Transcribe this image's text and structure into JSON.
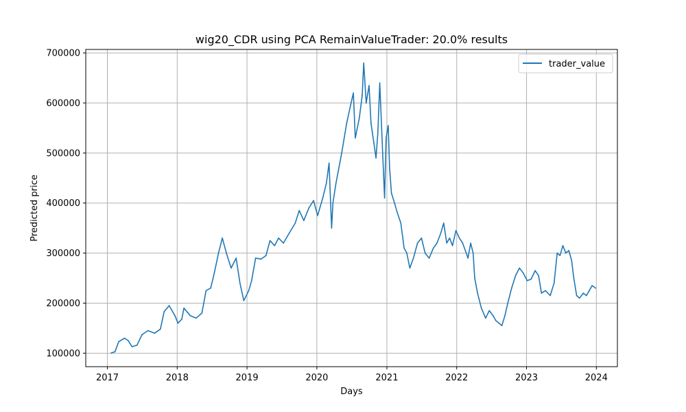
{
  "chart_data": {
    "type": "line",
    "title": "wig20_CDR using PCA RemainValueTrader: 20.0% results",
    "xlabel": "Days",
    "ylabel": "Predicted price",
    "xlim": [
      "2016-09-10",
      "2024-04-20"
    ],
    "ylim": [
      73000,
      707000
    ],
    "x_ticks": [
      {
        "label": "2017",
        "date": "2017-01-01"
      },
      {
        "label": "2018",
        "date": "2018-01-01"
      },
      {
        "label": "2019",
        "date": "2019-01-01"
      },
      {
        "label": "2020",
        "date": "2020-01-01"
      },
      {
        "label": "2021",
        "date": "2021-01-01"
      },
      {
        "label": "2022",
        "date": "2022-01-01"
      },
      {
        "label": "2023",
        "date": "2023-01-01"
      },
      {
        "label": "2024",
        "date": "2024-01-01"
      }
    ],
    "y_ticks": [
      {
        "label": "100000",
        "value": 100000
      },
      {
        "label": "200000",
        "value": 200000
      },
      {
        "label": "300000",
        "value": 300000
      },
      {
        "label": "400000",
        "value": 400000
      },
      {
        "label": "500000",
        "value": 500000
      },
      {
        "label": "600000",
        "value": 600000
      },
      {
        "label": "700000",
        "value": 700000
      }
    ],
    "grid": true,
    "legend_position": "top-right",
    "series": [
      {
        "name": "trader_value",
        "color": "#1f77b4",
        "points": [
          [
            "2017-01-20",
            100000
          ],
          [
            "2017-02-10",
            103000
          ],
          [
            "2017-03-01",
            123000
          ],
          [
            "2017-04-01",
            130000
          ],
          [
            "2017-04-20",
            125000
          ],
          [
            "2017-05-10",
            113000
          ],
          [
            "2017-06-05",
            116000
          ],
          [
            "2017-07-01",
            137000
          ],
          [
            "2017-08-01",
            145000
          ],
          [
            "2017-09-05",
            140000
          ],
          [
            "2017-10-05",
            148000
          ],
          [
            "2017-10-25",
            183000
          ],
          [
            "2017-11-20",
            195000
          ],
          [
            "2017-12-05",
            185000
          ],
          [
            "2017-12-20",
            175000
          ],
          [
            "2018-01-05",
            160000
          ],
          [
            "2018-01-25",
            168000
          ],
          [
            "2018-02-05",
            190000
          ],
          [
            "2018-03-10",
            175000
          ],
          [
            "2018-04-10",
            170000
          ],
          [
            "2018-05-10",
            180000
          ],
          [
            "2018-06-01",
            225000
          ],
          [
            "2018-06-25",
            230000
          ],
          [
            "2018-07-15",
            262000
          ],
          [
            "2018-08-05",
            300000
          ],
          [
            "2018-08-25",
            330000
          ],
          [
            "2018-09-15",
            300000
          ],
          [
            "2018-10-10",
            270000
          ],
          [
            "2018-11-05",
            290000
          ],
          [
            "2018-11-25",
            240000
          ],
          [
            "2018-12-15",
            205000
          ],
          [
            "2019-01-10",
            225000
          ],
          [
            "2019-01-25",
            245000
          ],
          [
            "2019-02-15",
            290000
          ],
          [
            "2019-03-15",
            288000
          ],
          [
            "2019-04-10",
            295000
          ],
          [
            "2019-05-01",
            325000
          ],
          [
            "2019-05-25",
            315000
          ],
          [
            "2019-06-15",
            330000
          ],
          [
            "2019-07-10",
            320000
          ],
          [
            "2019-08-10",
            340000
          ],
          [
            "2019-09-10",
            360000
          ],
          [
            "2019-10-01",
            385000
          ],
          [
            "2019-10-25",
            365000
          ],
          [
            "2019-11-20",
            390000
          ],
          [
            "2019-12-15",
            405000
          ],
          [
            "2020-01-05",
            375000
          ],
          [
            "2020-02-01",
            410000
          ],
          [
            "2020-02-20",
            440000
          ],
          [
            "2020-03-05",
            480000
          ],
          [
            "2020-03-10",
            430000
          ],
          [
            "2020-03-18",
            350000
          ],
          [
            "2020-03-25",
            400000
          ],
          [
            "2020-04-10",
            440000
          ],
          [
            "2020-05-10",
            500000
          ],
          [
            "2020-06-05",
            560000
          ],
          [
            "2020-06-25",
            595000
          ],
          [
            "2020-07-10",
            620000
          ],
          [
            "2020-07-20",
            530000
          ],
          [
            "2020-08-10",
            570000
          ],
          [
            "2020-08-25",
            615000
          ],
          [
            "2020-09-02",
            680000
          ],
          [
            "2020-09-15",
            600000
          ],
          [
            "2020-09-30",
            635000
          ],
          [
            "2020-10-10",
            560000
          ],
          [
            "2020-10-25",
            520000
          ],
          [
            "2020-11-05",
            490000
          ],
          [
            "2020-11-15",
            540000
          ],
          [
            "2020-11-25",
            640000
          ],
          [
            "2020-12-10",
            500000
          ],
          [
            "2020-12-20",
            410000
          ],
          [
            "2020-12-28",
            530000
          ],
          [
            "2021-01-08",
            555000
          ],
          [
            "2021-01-15",
            470000
          ],
          [
            "2021-01-25",
            420000
          ],
          [
            "2021-02-10",
            400000
          ],
          [
            "2021-02-25",
            380000
          ],
          [
            "2021-03-15",
            360000
          ],
          [
            "2021-04-01",
            310000
          ],
          [
            "2021-04-15",
            300000
          ],
          [
            "2021-05-01",
            270000
          ],
          [
            "2021-05-20",
            290000
          ],
          [
            "2021-06-10",
            320000
          ],
          [
            "2021-07-01",
            330000
          ],
          [
            "2021-07-20",
            300000
          ],
          [
            "2021-08-10",
            290000
          ],
          [
            "2021-09-01",
            310000
          ],
          [
            "2021-09-20",
            320000
          ],
          [
            "2021-10-10",
            340000
          ],
          [
            "2021-10-25",
            360000
          ],
          [
            "2021-11-10",
            320000
          ],
          [
            "2021-11-25",
            330000
          ],
          [
            "2021-12-10",
            315000
          ],
          [
            "2021-12-28",
            345000
          ],
          [
            "2022-01-15",
            330000
          ],
          [
            "2022-02-01",
            320000
          ],
          [
            "2022-02-15",
            305000
          ],
          [
            "2022-03-01",
            290000
          ],
          [
            "2022-03-15",
            320000
          ],
          [
            "2022-03-28",
            300000
          ],
          [
            "2022-04-05",
            250000
          ],
          [
            "2022-04-20",
            220000
          ],
          [
            "2022-05-10",
            190000
          ],
          [
            "2022-06-01",
            170000
          ],
          [
            "2022-06-20",
            185000
          ],
          [
            "2022-07-10",
            175000
          ],
          [
            "2022-07-25",
            165000
          ],
          [
            "2022-08-10",
            160000
          ],
          [
            "2022-08-25",
            155000
          ],
          [
            "2022-09-10",
            175000
          ],
          [
            "2022-09-25",
            200000
          ],
          [
            "2022-10-15",
            230000
          ],
          [
            "2022-11-05",
            255000
          ],
          [
            "2022-11-25",
            270000
          ],
          [
            "2022-12-15",
            260000
          ],
          [
            "2023-01-05",
            245000
          ],
          [
            "2023-01-25",
            248000
          ],
          [
            "2023-02-15",
            265000
          ],
          [
            "2023-03-05",
            255000
          ],
          [
            "2023-03-20",
            220000
          ],
          [
            "2023-04-10",
            225000
          ],
          [
            "2023-05-05",
            215000
          ],
          [
            "2023-05-25",
            240000
          ],
          [
            "2023-06-10",
            300000
          ],
          [
            "2023-06-25",
            295000
          ],
          [
            "2023-07-10",
            315000
          ],
          [
            "2023-07-25",
            300000
          ],
          [
            "2023-08-10",
            305000
          ],
          [
            "2023-08-25",
            285000
          ],
          [
            "2023-09-05",
            250000
          ],
          [
            "2023-09-20",
            215000
          ],
          [
            "2023-10-05",
            210000
          ],
          [
            "2023-10-25",
            220000
          ],
          [
            "2023-11-10",
            215000
          ],
          [
            "2023-11-25",
            225000
          ],
          [
            "2023-12-10",
            235000
          ],
          [
            "2023-12-28",
            230000
          ]
        ]
      }
    ]
  }
}
